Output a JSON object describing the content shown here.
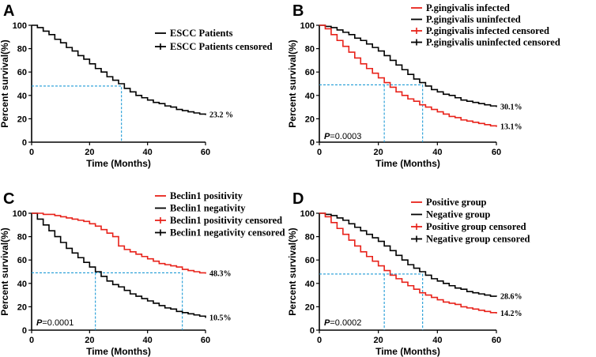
{
  "colors": {
    "red": "#e8221a",
    "black": "#000000",
    "median": "#1f9bd6"
  },
  "chart_data": [
    {
      "type": "line",
      "subtype": "kaplan-meier",
      "panel": "A",
      "xlabel": "Time (Months)",
      "ylabel": "Percent survival(%)",
      "xlim": [
        0,
        60
      ],
      "ylim": [
        0,
        100
      ],
      "xticks": [
        0,
        20,
        40,
        60
      ],
      "yticks": [
        0,
        20,
        40,
        60,
        80,
        100
      ],
      "p_value": "",
      "legend": [
        "ESCC Patients",
        "ESCC Patients censored"
      ],
      "median": {
        "x": 31,
        "y": 48
      },
      "series": [
        {
          "name": "ESCC Patients",
          "color": "#000000",
          "end_label": "23.2 %",
          "x": [
            0,
            2,
            4,
            6,
            8,
            10,
            12,
            14,
            16,
            18,
            20,
            22,
            24,
            26,
            28,
            30,
            32,
            34,
            36,
            38,
            40,
            42,
            44,
            46,
            48,
            50,
            52,
            54,
            56,
            58,
            60
          ],
          "y": [
            100,
            98,
            95,
            92,
            88,
            85,
            81,
            78,
            74,
            71,
            67,
            63,
            60,
            56,
            53,
            50,
            46,
            43,
            40,
            38,
            36,
            34,
            33,
            31,
            30,
            28,
            27,
            26,
            25,
            24,
            23.2
          ]
        }
      ]
    },
    {
      "type": "line",
      "subtype": "kaplan-meier",
      "panel": "B",
      "xlabel": "Time (Months)",
      "ylabel": "Percent survival(%)",
      "xlim": [
        0,
        60
      ],
      "ylim": [
        0,
        100
      ],
      "xticks": [
        0,
        20,
        40,
        60
      ],
      "yticks": [
        0,
        20,
        40,
        60,
        80,
        100
      ],
      "p_value": "=0.0003",
      "legend": [
        "P.gingivalis infected",
        "P.gingivalis uninfected",
        "P.gingivalis infected censored",
        "P.gingivalis uninfected censored"
      ],
      "median": {
        "x1": 22,
        "x2": 35,
        "y": 49
      },
      "series": [
        {
          "name": "P.gingivalis infected",
          "color": "#e8221a",
          "end_label": "13.1%",
          "x": [
            0,
            2,
            4,
            6,
            8,
            10,
            12,
            14,
            16,
            18,
            20,
            22,
            24,
            26,
            28,
            30,
            32,
            34,
            36,
            38,
            40,
            42,
            44,
            46,
            48,
            50,
            52,
            54,
            56,
            58,
            60
          ],
          "y": [
            100,
            97,
            92,
            87,
            82,
            77,
            72,
            67,
            63,
            59,
            55,
            51,
            47,
            43,
            40,
            37,
            35,
            32,
            30,
            28,
            26,
            24,
            22,
            21,
            19,
            18,
            17,
            16,
            15,
            14,
            13.1
          ]
        },
        {
          "name": "P.gingivalis uninfected",
          "color": "#000000",
          "end_label": "30.1%",
          "x": [
            0,
            2,
            4,
            6,
            8,
            10,
            12,
            14,
            16,
            18,
            20,
            22,
            24,
            26,
            28,
            30,
            32,
            34,
            36,
            38,
            40,
            42,
            44,
            46,
            48,
            50,
            52,
            54,
            56,
            58,
            60
          ],
          "y": [
            100,
            99,
            98,
            96,
            94,
            92,
            89,
            87,
            84,
            81,
            78,
            74,
            70,
            66,
            62,
            58,
            54,
            51,
            48,
            45,
            43,
            41,
            40,
            38,
            36,
            35,
            34,
            33,
            32,
            31,
            30.1
          ]
        }
      ]
    },
    {
      "type": "line",
      "subtype": "kaplan-meier",
      "panel": "C",
      "xlabel": "Time (Months)",
      "ylabel": "Percent survival(%)",
      "xlim": [
        0,
        60
      ],
      "ylim": [
        0,
        100
      ],
      "xticks": [
        0,
        20,
        40,
        60
      ],
      "yticks": [
        0,
        20,
        40,
        60,
        80,
        100
      ],
      "p_value": "=0.0001",
      "legend": [
        "Beclin1 positivity",
        "Beclin1 negativity",
        "Beclin1 positivity censored",
        "Beclin1 negativity censored"
      ],
      "median": {
        "x1": 22,
        "x2": 52,
        "y": 49
      },
      "series": [
        {
          "name": "Beclin1 positivity",
          "color": "#e8221a",
          "end_label": "48.3%",
          "x": [
            0,
            2,
            4,
            6,
            8,
            10,
            12,
            14,
            16,
            18,
            20,
            22,
            24,
            26,
            28,
            30,
            32,
            34,
            36,
            38,
            40,
            42,
            44,
            46,
            48,
            50,
            52,
            54,
            56,
            58,
            60
          ],
          "y": [
            100,
            100,
            99,
            99,
            98,
            97,
            96,
            95,
            94,
            93,
            91,
            89,
            86,
            83,
            80,
            72,
            69,
            67,
            65,
            63,
            61,
            59,
            57,
            56,
            55,
            54,
            52,
            51,
            50,
            49,
            48.3
          ]
        },
        {
          "name": "Beclin1 negativity",
          "color": "#000000",
          "end_label": "10.5%",
          "x": [
            0,
            2,
            4,
            6,
            8,
            10,
            12,
            14,
            16,
            18,
            20,
            22,
            24,
            26,
            28,
            30,
            32,
            34,
            36,
            38,
            40,
            42,
            44,
            46,
            48,
            50,
            52,
            54,
            56,
            58,
            60
          ],
          "y": [
            100,
            95,
            90,
            85,
            80,
            75,
            70,
            66,
            62,
            58,
            54,
            50,
            46,
            42,
            39,
            37,
            34,
            31,
            29,
            27,
            25,
            23,
            21,
            19,
            18,
            16,
            15,
            14,
            13,
            12,
            10.5
          ]
        }
      ]
    },
    {
      "type": "line",
      "subtype": "kaplan-meier",
      "panel": "D",
      "xlabel": "Time (Months)",
      "ylabel": "Percent survival(%)",
      "xlim": [
        0,
        60
      ],
      "ylim": [
        0,
        100
      ],
      "xticks": [
        0,
        20,
        40,
        60
      ],
      "yticks": [
        0,
        20,
        40,
        60,
        80,
        100
      ],
      "p_value": "=0.0002",
      "legend": [
        "Positive group",
        "Negative group",
        "Positive group censored",
        "Negative group censored"
      ],
      "median": {
        "x1": 22,
        "x2": 35,
        "y": 48
      },
      "series": [
        {
          "name": "Positive group",
          "color": "#e8221a",
          "end_label": "14.2%",
          "x": [
            0,
            2,
            4,
            6,
            8,
            10,
            12,
            14,
            16,
            18,
            20,
            22,
            24,
            26,
            28,
            30,
            32,
            34,
            36,
            38,
            40,
            42,
            44,
            46,
            48,
            50,
            52,
            54,
            56,
            58,
            60
          ],
          "y": [
            100,
            97,
            92,
            87,
            82,
            77,
            72,
            67,
            63,
            59,
            55,
            51,
            47,
            44,
            41,
            38,
            35,
            32,
            30,
            28,
            26,
            24,
            23,
            22,
            20,
            19,
            18,
            17,
            16,
            15,
            14.2
          ]
        },
        {
          "name": "Negative group",
          "color": "#000000",
          "end_label": "28.6%",
          "x": [
            0,
            2,
            4,
            6,
            8,
            10,
            12,
            14,
            16,
            18,
            20,
            22,
            24,
            26,
            28,
            30,
            32,
            34,
            36,
            38,
            40,
            42,
            44,
            46,
            48,
            50,
            52,
            54,
            56,
            58,
            60
          ],
          "y": [
            100,
            99,
            98,
            96,
            94,
            91,
            88,
            85,
            82,
            79,
            76,
            72,
            68,
            64,
            60,
            56,
            53,
            50,
            47,
            44,
            42,
            40,
            38,
            36,
            35,
            33,
            32,
            31,
            30,
            29,
            28.6
          ]
        }
      ]
    }
  ]
}
